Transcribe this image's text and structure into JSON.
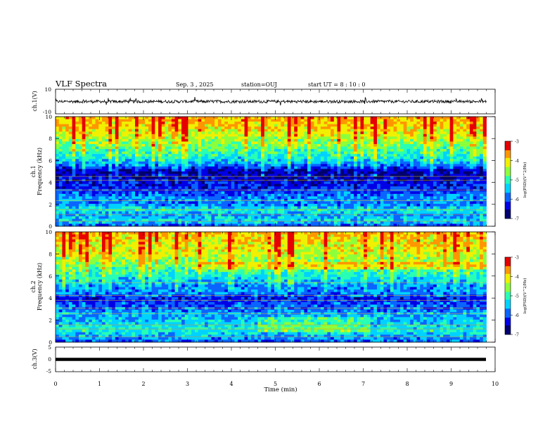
{
  "header": {
    "title": "VLF Spectra",
    "date": "Sep. 3 , 2025",
    "station": "station=OUJ",
    "start": "start UT = 8 : 10 : 0"
  },
  "colors": {
    "colormap": [
      "#00006e",
      "#0000e6",
      "#0a64ff",
      "#00d2ff",
      "#28ffb4",
      "#8cff3c",
      "#f0f000",
      "#ff9600",
      "#e60000",
      "#ffffff"
    ]
  },
  "chart_data": [
    {
      "type": "line",
      "name": "ch1-waveform",
      "ylabel": "ch.1(V)",
      "ylim": [
        -10,
        10
      ],
      "yticks": [
        "10",
        "-10"
      ],
      "xlim": [
        0,
        10
      ],
      "baseline": 0,
      "noise_amplitude": 1.2,
      "note": "continuous waveform trace ending near 9.8 min"
    },
    {
      "type": "heatmap",
      "name": "ch1-spectrogram",
      "ylabel": "ch.1",
      "ylabel2": "Frequency (kHz)",
      "yticks": [
        "0",
        "2",
        "4",
        "6",
        "8",
        "10"
      ],
      "ylim": [
        0,
        10
      ],
      "xlim": [
        0,
        9.8
      ],
      "colorbar": {
        "label": "log(PSD)(V^2/Hz)",
        "ticks": [
          "-3",
          "-4",
          "-5",
          "-6",
          "-7"
        ],
        "range": [
          -7,
          -3
        ]
      },
      "freq_profile_khz": [
        0,
        0.5,
        1.0,
        1.5,
        2.0,
        2.5,
        3.0,
        3.5,
        4.0,
        4.5,
        5.0,
        5.5,
        6.0,
        6.5,
        7.0,
        7.5,
        8.0,
        8.5,
        9.0,
        9.5,
        10.0
      ],
      "mean_log_psd": [
        -6.1,
        -5.3,
        -5.6,
        -5.2,
        -5.9,
        -5.6,
        -6.0,
        -6.2,
        -6.3,
        -6.5,
        -6.7,
        -5.9,
        -5.4,
        -5.1,
        -4.9,
        -4.6,
        -4.4,
        -4.2,
        -4.0,
        -3.9,
        -3.8
      ]
    },
    {
      "type": "heatmap",
      "name": "ch2-spectrogram",
      "ylabel": "ch.2",
      "ylabel2": "Frequency (kHz)",
      "yticks": [
        "0",
        "2",
        "4",
        "6",
        "8",
        "10"
      ],
      "ylim": [
        0,
        10
      ],
      "xlim": [
        0,
        9.8
      ],
      "colorbar": {
        "label": "log(PSD)(V^2/Hz)",
        "ticks": [
          "-3",
          "-4",
          "-5",
          "-6",
          "-7"
        ],
        "range": [
          -7,
          -3
        ]
      },
      "freq_profile_khz": [
        0,
        0.5,
        1.0,
        1.5,
        2.0,
        2.5,
        3.0,
        3.5,
        4.0,
        4.5,
        5.0,
        5.5,
        6.0,
        6.5,
        7.0,
        7.5,
        8.0,
        8.5,
        9.0,
        9.5,
        10.0
      ],
      "mean_log_psd": [
        -6.0,
        -5.6,
        -5.2,
        -5.3,
        -5.6,
        -5.5,
        -5.9,
        -6.0,
        -6.2,
        -5.7,
        -5.8,
        -5.5,
        -5.2,
        -5.0,
        -4.7,
        -4.5,
        -4.3,
        -4.2,
        -4.1,
        -4.0,
        -3.9
      ]
    },
    {
      "type": "line",
      "name": "ch3-waveform",
      "ylabel": "ch.3(V)",
      "yticks": [
        "5",
        "0",
        "-5"
      ],
      "ylim": [
        -5,
        5
      ],
      "xlim": [
        0,
        10
      ],
      "baseline": 0,
      "note": "thick flat trace near 0 V ending near 9.8 min"
    }
  ],
  "xaxis": {
    "label": "Time (min)",
    "ticks": [
      "0",
      "1",
      "2",
      "3",
      "4",
      "5",
      "6",
      "7",
      "8",
      "9",
      "10"
    ]
  }
}
